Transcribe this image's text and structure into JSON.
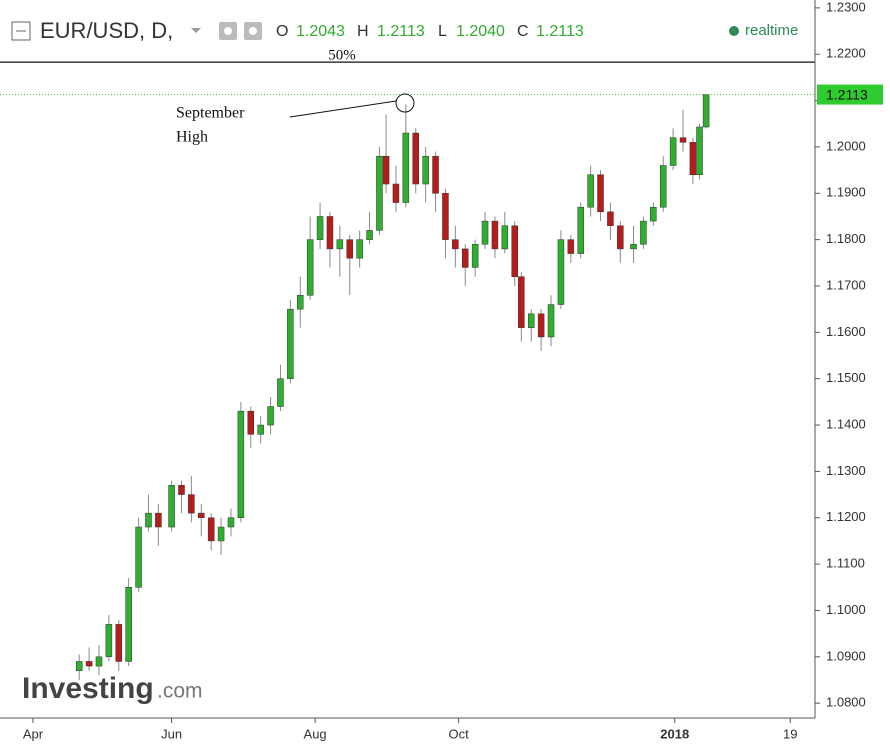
{
  "chart_data": {
    "type": "candlestick",
    "header": {
      "symbol": "EUR/USD, D,",
      "o_label": "O",
      "o": "1.2043",
      "h_label": "H",
      "h": "1.2113",
      "l_label": "L",
      "l": "1.2040",
      "c_label": "C",
      "c": "1.2113",
      "status": "realtime"
    },
    "x": [
      24,
      27,
      30,
      33,
      36,
      39,
      42,
      45,
      48,
      52,
      55,
      58,
      61,
      64,
      67,
      70,
      73,
      76,
      79,
      82,
      85,
      88,
      91,
      94,
      97,
      100,
      103,
      106,
      109,
      112,
      115,
      117,
      120,
      123,
      126,
      129,
      132,
      135,
      138,
      141,
      144,
      147,
      150,
      153,
      156,
      158,
      161,
      164,
      167,
      170,
      173,
      176,
      179,
      182,
      185,
      188,
      192,
      195,
      198,
      201,
      204,
      207,
      210,
      212,
      214
    ],
    "open": [
      1.087,
      1.089,
      1.088,
      1.09,
      1.097,
      1.089,
      1.105,
      1.118,
      1.121,
      1.118,
      1.127,
      1.125,
      1.121,
      1.12,
      1.115,
      1.118,
      1.12,
      1.143,
      1.138,
      1.14,
      1.144,
      1.15,
      1.165,
      1.168,
      1.18,
      1.185,
      1.178,
      1.18,
      1.176,
      1.18,
      1.182,
      1.198,
      1.192,
      1.188,
      1.203,
      1.192,
      1.198,
      1.19,
      1.18,
      1.178,
      1.174,
      1.179,
      1.184,
      1.178,
      1.183,
      1.172,
      1.161,
      1.164,
      1.159,
      1.166,
      1.18,
      1.177,
      1.187,
      1.194,
      1.186,
      1.183,
      1.178,
      1.179,
      1.184,
      1.187,
      1.196,
      1.202,
      1.201,
      1.194,
      1.2043
    ],
    "high": [
      1.0905,
      1.092,
      1.0925,
      1.099,
      1.098,
      1.107,
      1.12,
      1.125,
      1.123,
      1.128,
      1.128,
      1.129,
      1.123,
      1.121,
      1.12,
      1.122,
      1.145,
      1.144,
      1.142,
      1.146,
      1.153,
      1.167,
      1.172,
      1.185,
      1.188,
      1.186,
      1.183,
      1.181,
      1.182,
      1.186,
      1.2,
      1.207,
      1.196,
      1.2092,
      1.204,
      1.2,
      1.199,
      1.191,
      1.183,
      1.179,
      1.18,
      1.186,
      1.185,
      1.186,
      1.184,
      1.173,
      1.165,
      1.165,
      1.168,
      1.182,
      1.181,
      1.188,
      1.196,
      1.195,
      1.188,
      1.184,
      1.183,
      1.185,
      1.188,
      1.198,
      1.204,
      1.208,
      1.202,
      1.205,
      1.2113
    ],
    "low": [
      1.085,
      1.087,
      1.086,
      1.089,
      1.087,
      1.088,
      1.104,
      1.117,
      1.114,
      1.117,
      1.121,
      1.119,
      1.116,
      1.113,
      1.112,
      1.116,
      1.119,
      1.135,
      1.136,
      1.138,
      1.143,
      1.149,
      1.161,
      1.167,
      1.178,
      1.174,
      1.172,
      1.168,
      1.174,
      1.179,
      1.181,
      1.19,
      1.186,
      1.187,
      1.19,
      1.188,
      1.186,
      1.176,
      1.174,
      1.17,
      1.172,
      1.178,
      1.176,
      1.177,
      1.17,
      1.158,
      1.158,
      1.156,
      1.157,
      1.165,
      1.175,
      1.176,
      1.185,
      1.184,
      1.18,
      1.175,
      1.175,
      1.178,
      1.183,
      1.186,
      1.195,
      1.199,
      1.192,
      1.193,
      1.204
    ],
    "close": [
      1.089,
      1.088,
      1.09,
      1.097,
      1.089,
      1.105,
      1.118,
      1.121,
      1.118,
      1.127,
      1.125,
      1.121,
      1.12,
      1.115,
      1.118,
      1.12,
      1.143,
      1.138,
      1.14,
      1.144,
      1.15,
      1.165,
      1.168,
      1.18,
      1.185,
      1.178,
      1.18,
      1.176,
      1.18,
      1.182,
      1.198,
      1.192,
      1.188,
      1.203,
      1.192,
      1.198,
      1.19,
      1.18,
      1.178,
      1.174,
      1.179,
      1.184,
      1.178,
      1.183,
      1.172,
      1.161,
      1.164,
      1.159,
      1.166,
      1.18,
      1.177,
      1.187,
      1.194,
      1.186,
      1.183,
      1.178,
      1.179,
      1.184,
      1.187,
      1.196,
      1.202,
      1.201,
      1.194,
      1.2043,
      1.2113
    ],
    "up_color": "#2fae2f",
    "down_color": "#b51c1c",
    "xlim": [
      0,
      247
    ],
    "xticks": [
      {
        "value": 10,
        "label": "Apr"
      },
      {
        "value": 52,
        "label": "Jun"
      },
      {
        "value": 95.5,
        "label": "Aug"
      },
      {
        "value": 139,
        "label": "Oct"
      },
      {
        "value": 204.5,
        "label": "2018"
      },
      {
        "value": 239.5,
        "label": "19"
      }
    ],
    "ylim": [
      1.0768,
      1.2317
    ],
    "yticks": [
      {
        "value": 1.08,
        "label": "1.0800"
      },
      {
        "value": 1.09,
        "label": "1.0900"
      },
      {
        "value": 1.1,
        "label": "1.1000"
      },
      {
        "value": 1.11,
        "label": "1.1100"
      },
      {
        "value": 1.12,
        "label": "1.1200"
      },
      {
        "value": 1.13,
        "label": "1.1300"
      },
      {
        "value": 1.14,
        "label": "1.1400"
      },
      {
        "value": 1.15,
        "label": "1.1500"
      },
      {
        "value": 1.16,
        "label": "1.1600"
      },
      {
        "value": 1.17,
        "label": "1.1700"
      },
      {
        "value": 1.18,
        "label": "1.1800"
      },
      {
        "value": 1.19,
        "label": "1.1900"
      },
      {
        "value": 1.2,
        "label": "1.2000"
      },
      {
        "value": 1.21,
        "label": "1.2100"
      },
      {
        "value": 1.22,
        "label": "1.2200"
      },
      {
        "value": 1.23,
        "label": "1.2300"
      }
    ],
    "hline": {
      "value": 1.2183,
      "label": "50%"
    },
    "annotation": [
      "September",
      "High"
    ],
    "logo": [
      "Investing",
      ".com"
    ]
  }
}
